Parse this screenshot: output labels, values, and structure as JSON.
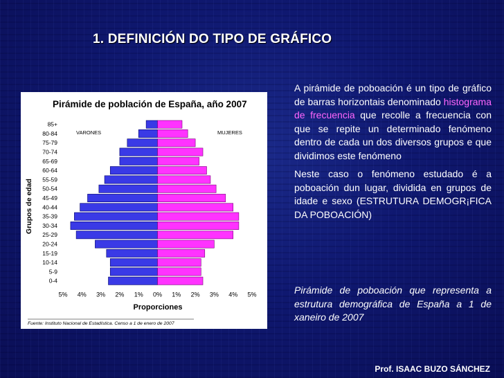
{
  "slide": {
    "title": "1. DEFINICIÓN DO TIPO DE GRÁFICO",
    "intro_before": "A pirámide de poboación é un tipo de gráfico de barras horizontais denominado ",
    "intro_highlight": "histograma de frecuencia",
    "intro_after": " que recolle a frecuencia con que se repite un determinado fenómeno dentro de cada un dos diversos grupos e que dividimos este fenómeno",
    "paragraph2": "Neste caso o fenómeno estudado é a poboación dun lugar, dividida en grupos de idade e sexo (ESTRUTURA DEMOGR¡FICA DA POBOACIÓN)",
    "caption": "Pirámide de poboación que representa a estrutura demográfica de España a 1 de xaneiro de 2007",
    "author": "Prof. ISAAC BUZO SÁNCHEZ",
    "highlight_color": "#ff66ff"
  },
  "chart_data": {
    "type": "bar",
    "orientation": "horizontal-pyramid",
    "title": "Pirámide de población de España, año 2007",
    "xlabel": "Proporciones",
    "ylabel": "Grupos de edad",
    "source": "Fuente: Instituto Nacional de Estadística. Censo a 1 de enero de 2007",
    "xlim": [
      -5,
      5
    ],
    "x_ticks": [
      "5%",
      "4%",
      "3%",
      "2%",
      "1%",
      "0%",
      "1%",
      "2%",
      "3%",
      "4%",
      "5%"
    ],
    "categories": [
      "85+",
      "80-84",
      "75-79",
      "70-74",
      "65-69",
      "60-64",
      "55-59",
      "50-54",
      "45-49",
      "40-44",
      "35-39",
      "30-34",
      "25-29",
      "20-24",
      "15-19",
      "10-14",
      "5-9",
      "0-4"
    ],
    "series": [
      {
        "name": "VARONES",
        "color": "#3a3ae6",
        "values": [
          0.6,
          1.0,
          1.6,
          2.0,
          2.0,
          2.5,
          2.8,
          3.1,
          3.7,
          4.1,
          4.4,
          4.6,
          4.3,
          3.3,
          2.7,
          2.5,
          2.5,
          2.6
        ]
      },
      {
        "name": "MUJERES",
        "color": "#ff33ff",
        "values": [
          1.3,
          1.6,
          2.0,
          2.4,
          2.2,
          2.6,
          2.8,
          3.1,
          3.6,
          4.0,
          4.3,
          4.3,
          4.0,
          3.0,
          2.5,
          2.3,
          2.3,
          2.4
        ]
      }
    ]
  }
}
